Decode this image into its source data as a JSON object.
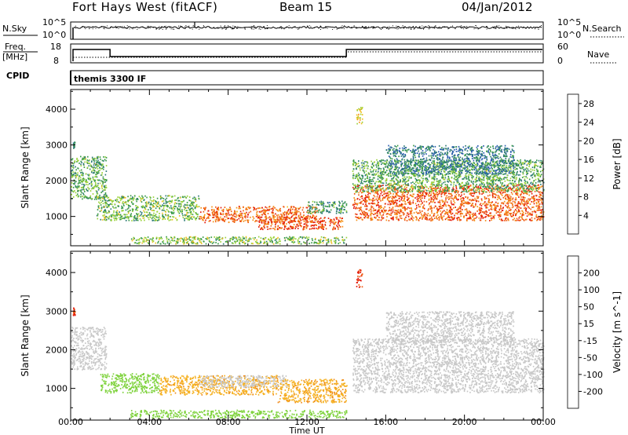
{
  "header": {
    "station": "Fort Hays West (fitACF)",
    "beam": "Beam 15",
    "date": "04/Jan/2012"
  },
  "top_panels": {
    "nsky_label": "N.Sky",
    "nsearch_label": "N.Search",
    "freq_label_1": "Freq.",
    "freq_label_2": "[MHz]",
    "nave_label": "Nave",
    "cpid_label": "CPID",
    "cpid_value": "themis 3300 IF",
    "noise_ticks_left": [
      "10^5",
      "10^0"
    ],
    "noise_ticks_right": [
      "10^5",
      "10^0"
    ],
    "freq_ticks": [
      "18",
      "8"
    ],
    "nave_ticks": [
      "60",
      "0"
    ]
  },
  "chart_data": [
    {
      "type": "heatmap",
      "panel": "power",
      "title": "",
      "xlabel": "",
      "ylabel": "Slant Range [km]",
      "xlim": [
        0,
        24
      ],
      "ylim": [
        180,
        4550
      ],
      "yticks": [
        1000,
        2000,
        3000,
        4000
      ],
      "colorbar": {
        "label": "Power [dB]",
        "ticks": [
          4,
          8,
          12,
          16,
          20,
          24,
          28
        ],
        "range": [
          0,
          30
        ],
        "colors": [
          "#0a1fd8",
          "#2a5db0",
          "#2f7a78",
          "#3a9a4a",
          "#9ad23a",
          "#f0c020",
          "#f59018",
          "#ef5a12",
          "#e41a0c"
        ]
      },
      "regions": [
        {
          "t0": 0.0,
          "t1": 1.8,
          "r0": 1500,
          "r1": 2700,
          "value": 12,
          "note": ""
        },
        {
          "t0": 0.1,
          "t1": 0.2,
          "r0": 2900,
          "r1": 3100,
          "value": 8
        },
        {
          "t0": 1.3,
          "t1": 6.5,
          "r0": 900,
          "r1": 1600,
          "value": 13
        },
        {
          "t0": 6.5,
          "t1": 12.5,
          "r0": 850,
          "r1": 1300,
          "value": 25
        },
        {
          "t0": 9.5,
          "t1": 13.8,
          "r0": 650,
          "r1": 1000,
          "value": 27
        },
        {
          "t0": 12.0,
          "t1": 14.0,
          "r0": 1100,
          "r1": 1450,
          "value": 10
        },
        {
          "t0": 3.0,
          "t1": 14.0,
          "r0": 250,
          "r1": 450,
          "value": 14
        },
        {
          "t0": 14.3,
          "t1": 24.0,
          "r0": 900,
          "r1": 1900,
          "value": 26
        },
        {
          "t0": 14.3,
          "t1": 24.0,
          "r0": 1700,
          "r1": 2600,
          "value": 12
        },
        {
          "t0": 16.0,
          "t1": 22.5,
          "r0": 2200,
          "r1": 3000,
          "value": 7
        },
        {
          "t0": 14.5,
          "t1": 14.8,
          "r0": 3600,
          "r1": 4100,
          "value": 18
        }
      ]
    },
    {
      "type": "heatmap",
      "panel": "velocity",
      "title": "",
      "xlabel": "Time UT",
      "ylabel": "Slant Range [km]",
      "xlim": [
        0,
        24
      ],
      "ylim": [
        180,
        4550
      ],
      "xticks": [
        "00:00",
        "04:00",
        "08:00",
        "12:00",
        "16:00",
        "20:00",
        "00:00"
      ],
      "yticks": [
        1000,
        2000,
        3000,
        4000
      ],
      "colorbar": {
        "label": "Velocity [m s^-1]",
        "ticks": [
          200,
          100,
          50,
          15,
          -15,
          -50,
          -100,
          -200
        ],
        "colors": [
          "#1428c8",
          "#2e55a6",
          "#2a8c5a",
          "#7ed23c",
          "#c8c8c8",
          "#f5b020",
          "#f08a1a",
          "#ef5a14",
          "#e1140c"
        ]
      },
      "regions": [
        {
          "t0": 0.0,
          "t1": 1.8,
          "r0": 1500,
          "r1": 2600,
          "value": 0
        },
        {
          "t0": 0.1,
          "t1": 0.2,
          "r0": 2900,
          "r1": 3100,
          "value": -200
        },
        {
          "t0": 1.5,
          "t1": 4.5,
          "r0": 900,
          "r1": 1400,
          "value": 30
        },
        {
          "t0": 4.5,
          "t1": 10.5,
          "r0": 850,
          "r1": 1350,
          "value": -40
        },
        {
          "t0": 6.5,
          "t1": 11.0,
          "r0": 1050,
          "r1": 1350,
          "value": 0
        },
        {
          "t0": 10.5,
          "t1": 14.0,
          "r0": 650,
          "r1": 1250,
          "value": -40
        },
        {
          "t0": 3.0,
          "t1": 14.0,
          "r0": 250,
          "r1": 450,
          "value": 30
        },
        {
          "t0": 14.3,
          "t1": 24.0,
          "r0": 900,
          "r1": 2300,
          "value": 0
        },
        {
          "t0": 16.0,
          "t1": 22.5,
          "r0": 2200,
          "r1": 3000,
          "value": 0
        },
        {
          "t0": 14.5,
          "t1": 14.8,
          "r0": 3600,
          "r1": 4100,
          "value": -200
        }
      ]
    }
  ]
}
